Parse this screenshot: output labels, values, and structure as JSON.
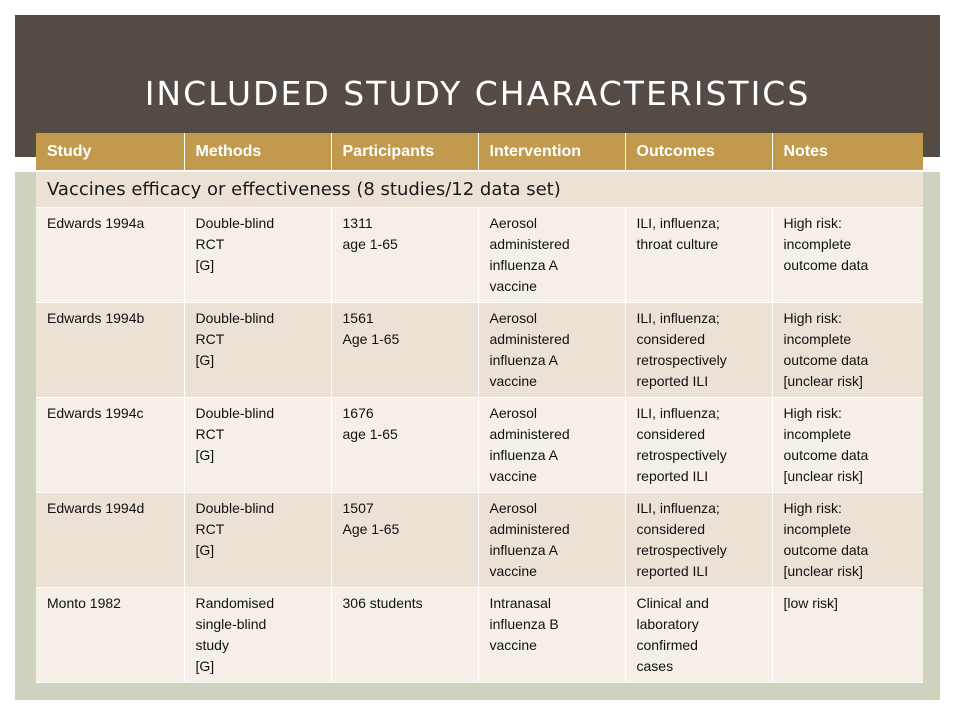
{
  "title": "INCLUDED STUDY CHARACTERISTICS",
  "columns": [
    "Study",
    "Methods",
    "Participants",
    "Intervention",
    "Outcomes",
    "Notes"
  ],
  "section_label": "Vaccines efficacy or effectiveness (8 studies/12 data set)",
  "rows": [
    {
      "study": [
        "Edwards 1994a"
      ],
      "methods": [
        "Double-blind",
        "RCT",
        "[G]"
      ],
      "participants": [
        "1311",
        "age 1-65"
      ],
      "intervention": [
        "Aerosol",
        "administered",
        "influenza A",
        "vaccine"
      ],
      "outcomes": [
        "ILI, influenza;",
        "throat culture"
      ],
      "notes": [
        "High risk:",
        "incomplete",
        "outcome data"
      ]
    },
    {
      "study": [
        "Edwards 1994b"
      ],
      "methods": [
        "Double-blind",
        "RCT",
        "[G]"
      ],
      "participants": [
        "1561",
        "Age 1-65"
      ],
      "intervention": [
        "Aerosol",
        "administered",
        "influenza A",
        "vaccine"
      ],
      "outcomes": [
        "ILI, influenza;",
        "considered",
        "retrospectively",
        "reported ILI"
      ],
      "notes": [
        "High risk:",
        "incomplete",
        "outcome data",
        "[unclear risk]"
      ]
    },
    {
      "study": [
        "Edwards 1994c"
      ],
      "methods": [
        "Double-blind",
        "RCT",
        "[G]"
      ],
      "participants": [
        "1676",
        "age 1-65"
      ],
      "intervention": [
        "Aerosol",
        "administered",
        "influenza A",
        "vaccine"
      ],
      "outcomes": [
        "ILI, influenza;",
        "considered",
        "retrospectively",
        "reported ILI"
      ],
      "notes": [
        "High risk:",
        "incomplete",
        "outcome data",
        "[unclear risk]"
      ]
    },
    {
      "study": [
        "Edwards 1994d"
      ],
      "methods": [
        "Double-blind",
        "RCT",
        "[G]"
      ],
      "participants": [
        "1507",
        "Age 1-65"
      ],
      "intervention": [
        "Aerosol",
        "administered",
        "influenza A",
        "vaccine"
      ],
      "outcomes": [
        "ILI, influenza;",
        "considered",
        "retrospectively",
        "reported ILI"
      ],
      "notes": [
        "High risk:",
        "incomplete",
        "outcome data",
        "[unclear risk]"
      ]
    },
    {
      "study": [
        "Monto 1982"
      ],
      "methods": [
        "Randomised",
        "single-blind",
        "study",
        "[G]"
      ],
      "participants": [
        "306 students"
      ],
      "intervention": [
        "Intranasal",
        "influenza B",
        "vaccine"
      ],
      "outcomes": [
        "Clinical and",
        "laboratory",
        "confirmed",
        "cases"
      ],
      "notes": [
        "[low risk]"
      ]
    }
  ],
  "colors": {
    "title_band": "#554b45",
    "header_bg": "#c29a4d",
    "row_light": "#f5efe8",
    "row_dark": "#ebe1d5",
    "side_band": "#cdd3bd"
  }
}
